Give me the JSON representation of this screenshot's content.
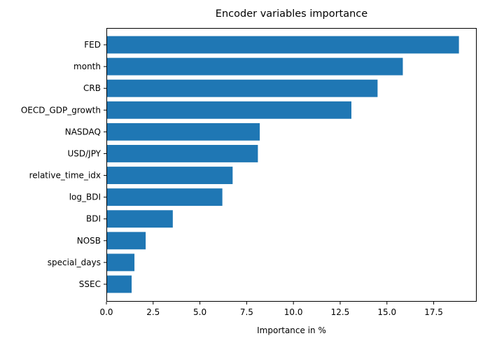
{
  "chart_data": {
    "type": "bar",
    "orientation": "horizontal",
    "title": "Encoder variables importance",
    "xlabel": "Importance in %",
    "ylabel": "",
    "categories": [
      "FED",
      "month",
      "CRB",
      "OECD_GDP_growth",
      "NASDAQ",
      "USD/JPY",
      "relative_time_idx",
      "log_BDI",
      "BDI",
      "NOSB",
      "special_days",
      "SSEC"
    ],
    "values": [
      18.85,
      15.85,
      14.5,
      13.1,
      8.2,
      8.1,
      6.75,
      6.2,
      3.55,
      2.1,
      1.5,
      1.35
    ],
    "xlim": [
      0,
      19.8
    ],
    "xticks": [
      0.0,
      2.5,
      5.0,
      7.5,
      10.0,
      12.5,
      15.0,
      17.5
    ],
    "xtick_labels": [
      "0.0",
      "2.5",
      "5.0",
      "7.5",
      "10.0",
      "12.5",
      "15.0",
      "17.5"
    ],
    "grid": false,
    "bar_color": "#1f77b4"
  }
}
